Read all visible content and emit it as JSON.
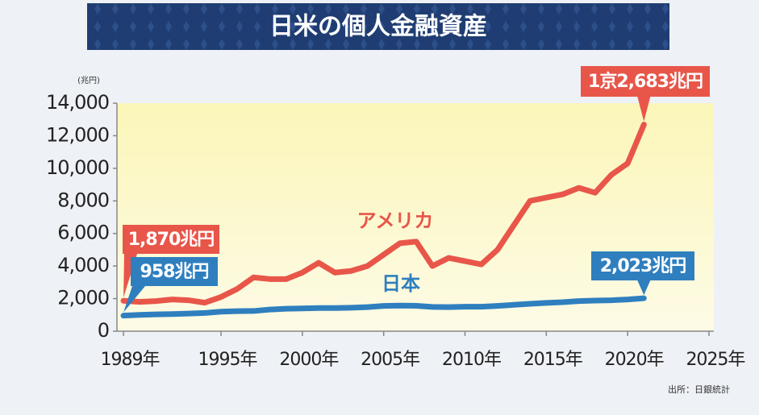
{
  "chart_data": {
    "type": "line",
    "title": "日米の個人金融資産",
    "y_label": "(兆円)",
    "source": "出所：日銀統計",
    "x": [
      1989,
      1990,
      1991,
      1992,
      1993,
      1994,
      1995,
      1996,
      1997,
      1998,
      1999,
      2000,
      2001,
      2002,
      2003,
      2004,
      2005,
      2006,
      2007,
      2008,
      2009,
      2010,
      2011,
      2012,
      2013,
      2014,
      2015,
      2016,
      2017,
      2018,
      2019,
      2020,
      2021
    ],
    "series": [
      {
        "name": "アメリカ",
        "color": "#e8564a",
        "values": [
          1870,
          1800,
          1850,
          1950,
          1900,
          1750,
          2100,
          2600,
          3300,
          3200,
          3200,
          3600,
          4200,
          3600,
          3700,
          4000,
          4700,
          5400,
          5500,
          4000,
          4500,
          4300,
          4100,
          5000,
          6500,
          8000,
          8200,
          8400,
          8800,
          8500,
          9600,
          10300,
          12683
        ],
        "value_labels": [
          "1,870兆円",
          null,
          null,
          null,
          null,
          null,
          null,
          null,
          null,
          null,
          null,
          null,
          null,
          null,
          null,
          null,
          null,
          null,
          null,
          null,
          null,
          null,
          null,
          null,
          null,
          null,
          null,
          null,
          null,
          null,
          null,
          null,
          "1京2,683兆円"
        ]
      },
      {
        "name": "日本",
        "color": "#2f7fbf",
        "values": [
          958,
          1000,
          1030,
          1050,
          1080,
          1120,
          1200,
          1230,
          1240,
          1330,
          1380,
          1400,
          1420,
          1420,
          1440,
          1480,
          1550,
          1570,
          1560,
          1490,
          1480,
          1500,
          1500,
          1550,
          1620,
          1680,
          1740,
          1780,
          1850,
          1880,
          1900,
          1950,
          2023
        ],
        "value_labels": [
          "958兆円",
          null,
          null,
          null,
          null,
          null,
          null,
          null,
          null,
          null,
          null,
          null,
          null,
          null,
          null,
          null,
          null,
          null,
          null,
          null,
          null,
          null,
          null,
          null,
          null,
          null,
          null,
          null,
          null,
          null,
          null,
          null,
          "2,023兆円"
        ]
      }
    ],
    "xlim": [
      1988.6,
      2025.3
    ],
    "xticks": [
      {
        "value": 1989,
        "label": "1989年"
      },
      {
        "value": 1995,
        "label": "1995年"
      },
      {
        "value": 2000,
        "label": "2000年"
      },
      {
        "value": 2005,
        "label": "2005年"
      },
      {
        "value": 2010,
        "label": "2010年"
      },
      {
        "value": 2015,
        "label": "2015年"
      },
      {
        "value": 2020,
        "label": "2020年"
      },
      {
        "value": 2025,
        "label": "2025年"
      }
    ],
    "ylim": [
      0,
      14000
    ],
    "yticks": [
      0,
      {
        "value": 2000,
        "label": "2,000"
      },
      {
        "value": 4000,
        "label": "4,000"
      },
      {
        "value": 6000,
        "label": "6,000"
      },
      {
        "value": 8000,
        "label": "8,000"
      },
      {
        "value": 10000,
        "label": "10,000"
      },
      {
        "value": 12000,
        "label": "12,000"
      },
      {
        "value": 14000,
        "label": "14,000"
      }
    ],
    "grid": false
  }
}
